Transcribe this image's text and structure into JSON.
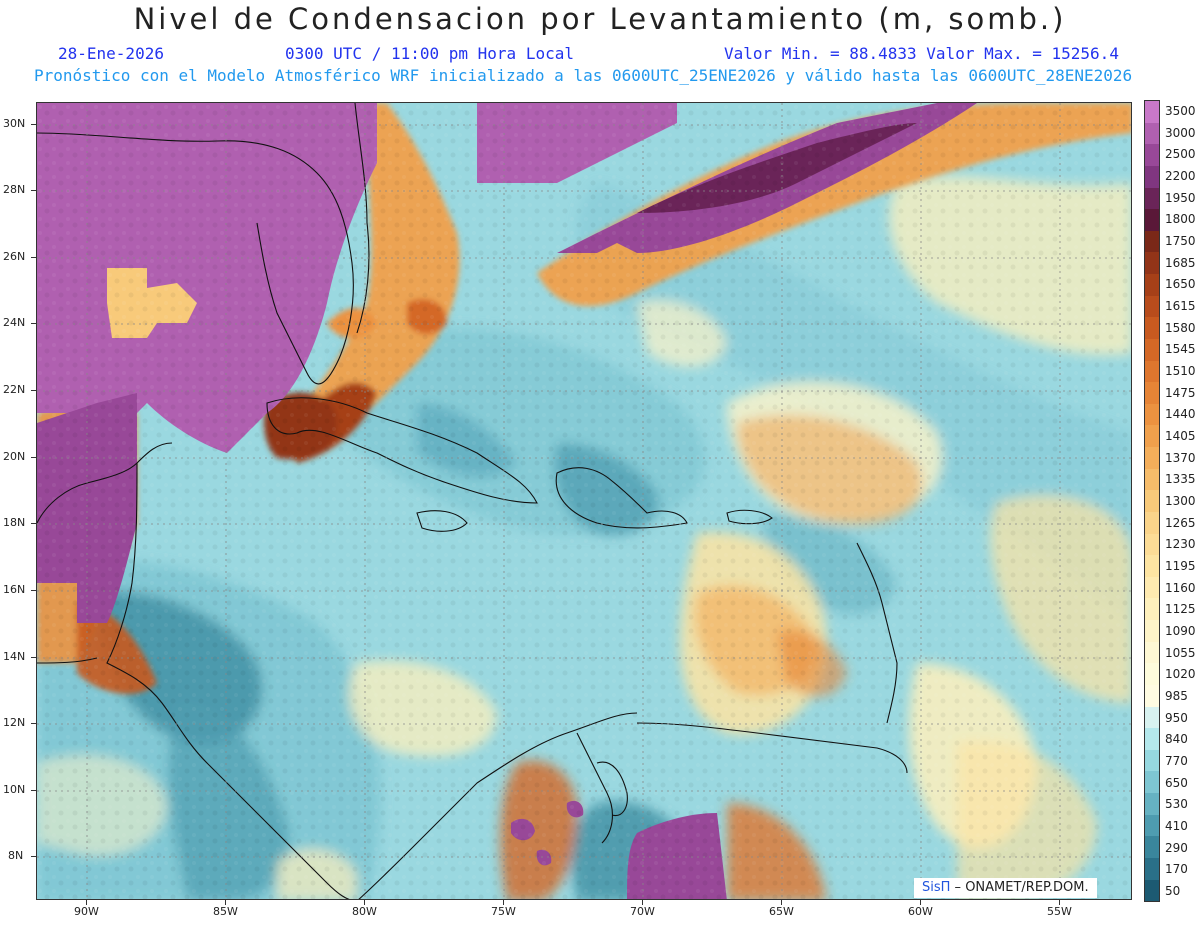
{
  "title": "Nivel de Condensacion por Levantamiento (m, somb.)",
  "date": "28-Ene-2026",
  "time": "0300 UTC / 11:00 pm Hora Local",
  "minmax": "Valor Min. = 88.4833  Valor Max. = 15256.4",
  "forecast": "Pronóstico con el Modelo Atmosférico WRF inicializado a las 0600UTC_25ENE2026 y válido hasta las  0600UTC_28ENE2026",
  "lat_labels": [
    "30N",
    "28N",
    "26N",
    "24N",
    "22N",
    "20N",
    "18N",
    "16N",
    "14N",
    "12N",
    "10N",
    "8N"
  ],
  "lon_labels": [
    "90W",
    "85W",
    "80W",
    "75W",
    "70W",
    "65W",
    "60W",
    "55W"
  ],
  "colorbar": {
    "labels": [
      "3500",
      "3000",
      "2500",
      "2200",
      "1950",
      "1800",
      "1750",
      "1685",
      "1650",
      "1615",
      "1580",
      "1545",
      "1510",
      "1475",
      "1440",
      "1405",
      "1370",
      "1335",
      "1300",
      "1265",
      "1230",
      "1195",
      "1160",
      "1125",
      "1090",
      "1055",
      "1020",
      "985",
      "950",
      "840",
      "770",
      "650",
      "530",
      "410",
      "290",
      "170",
      "50"
    ],
    "colors": [
      "#c878c8",
      "#b060b0",
      "#984898",
      "#803680",
      "#6a2458",
      "#5a1838",
      "#7a2818",
      "#923418",
      "#a64018",
      "#b84c1c",
      "#c85a20",
      "#d46826",
      "#de762e",
      "#e68436",
      "#ec9240",
      "#f0a04c",
      "#f4ae5a",
      "#f6bc6a",
      "#f8ca7a",
      "#fad48a",
      "#fcdc96",
      "#fde4a2",
      "#feeab0",
      "#fef0bc",
      "#fef4c8",
      "#fef8d4",
      "#fefcdc",
      "#fffce2",
      "#d8f2f0",
      "#b4e8ec",
      "#96d8e0",
      "#7ec6d2",
      "#66b2c2",
      "#4e9cb0",
      "#3a869c",
      "#2a7088",
      "#1c5a72"
    ]
  },
  "credit": {
    "brand": "SisΠ",
    "org": " ONAMET/REP.DOM."
  }
}
